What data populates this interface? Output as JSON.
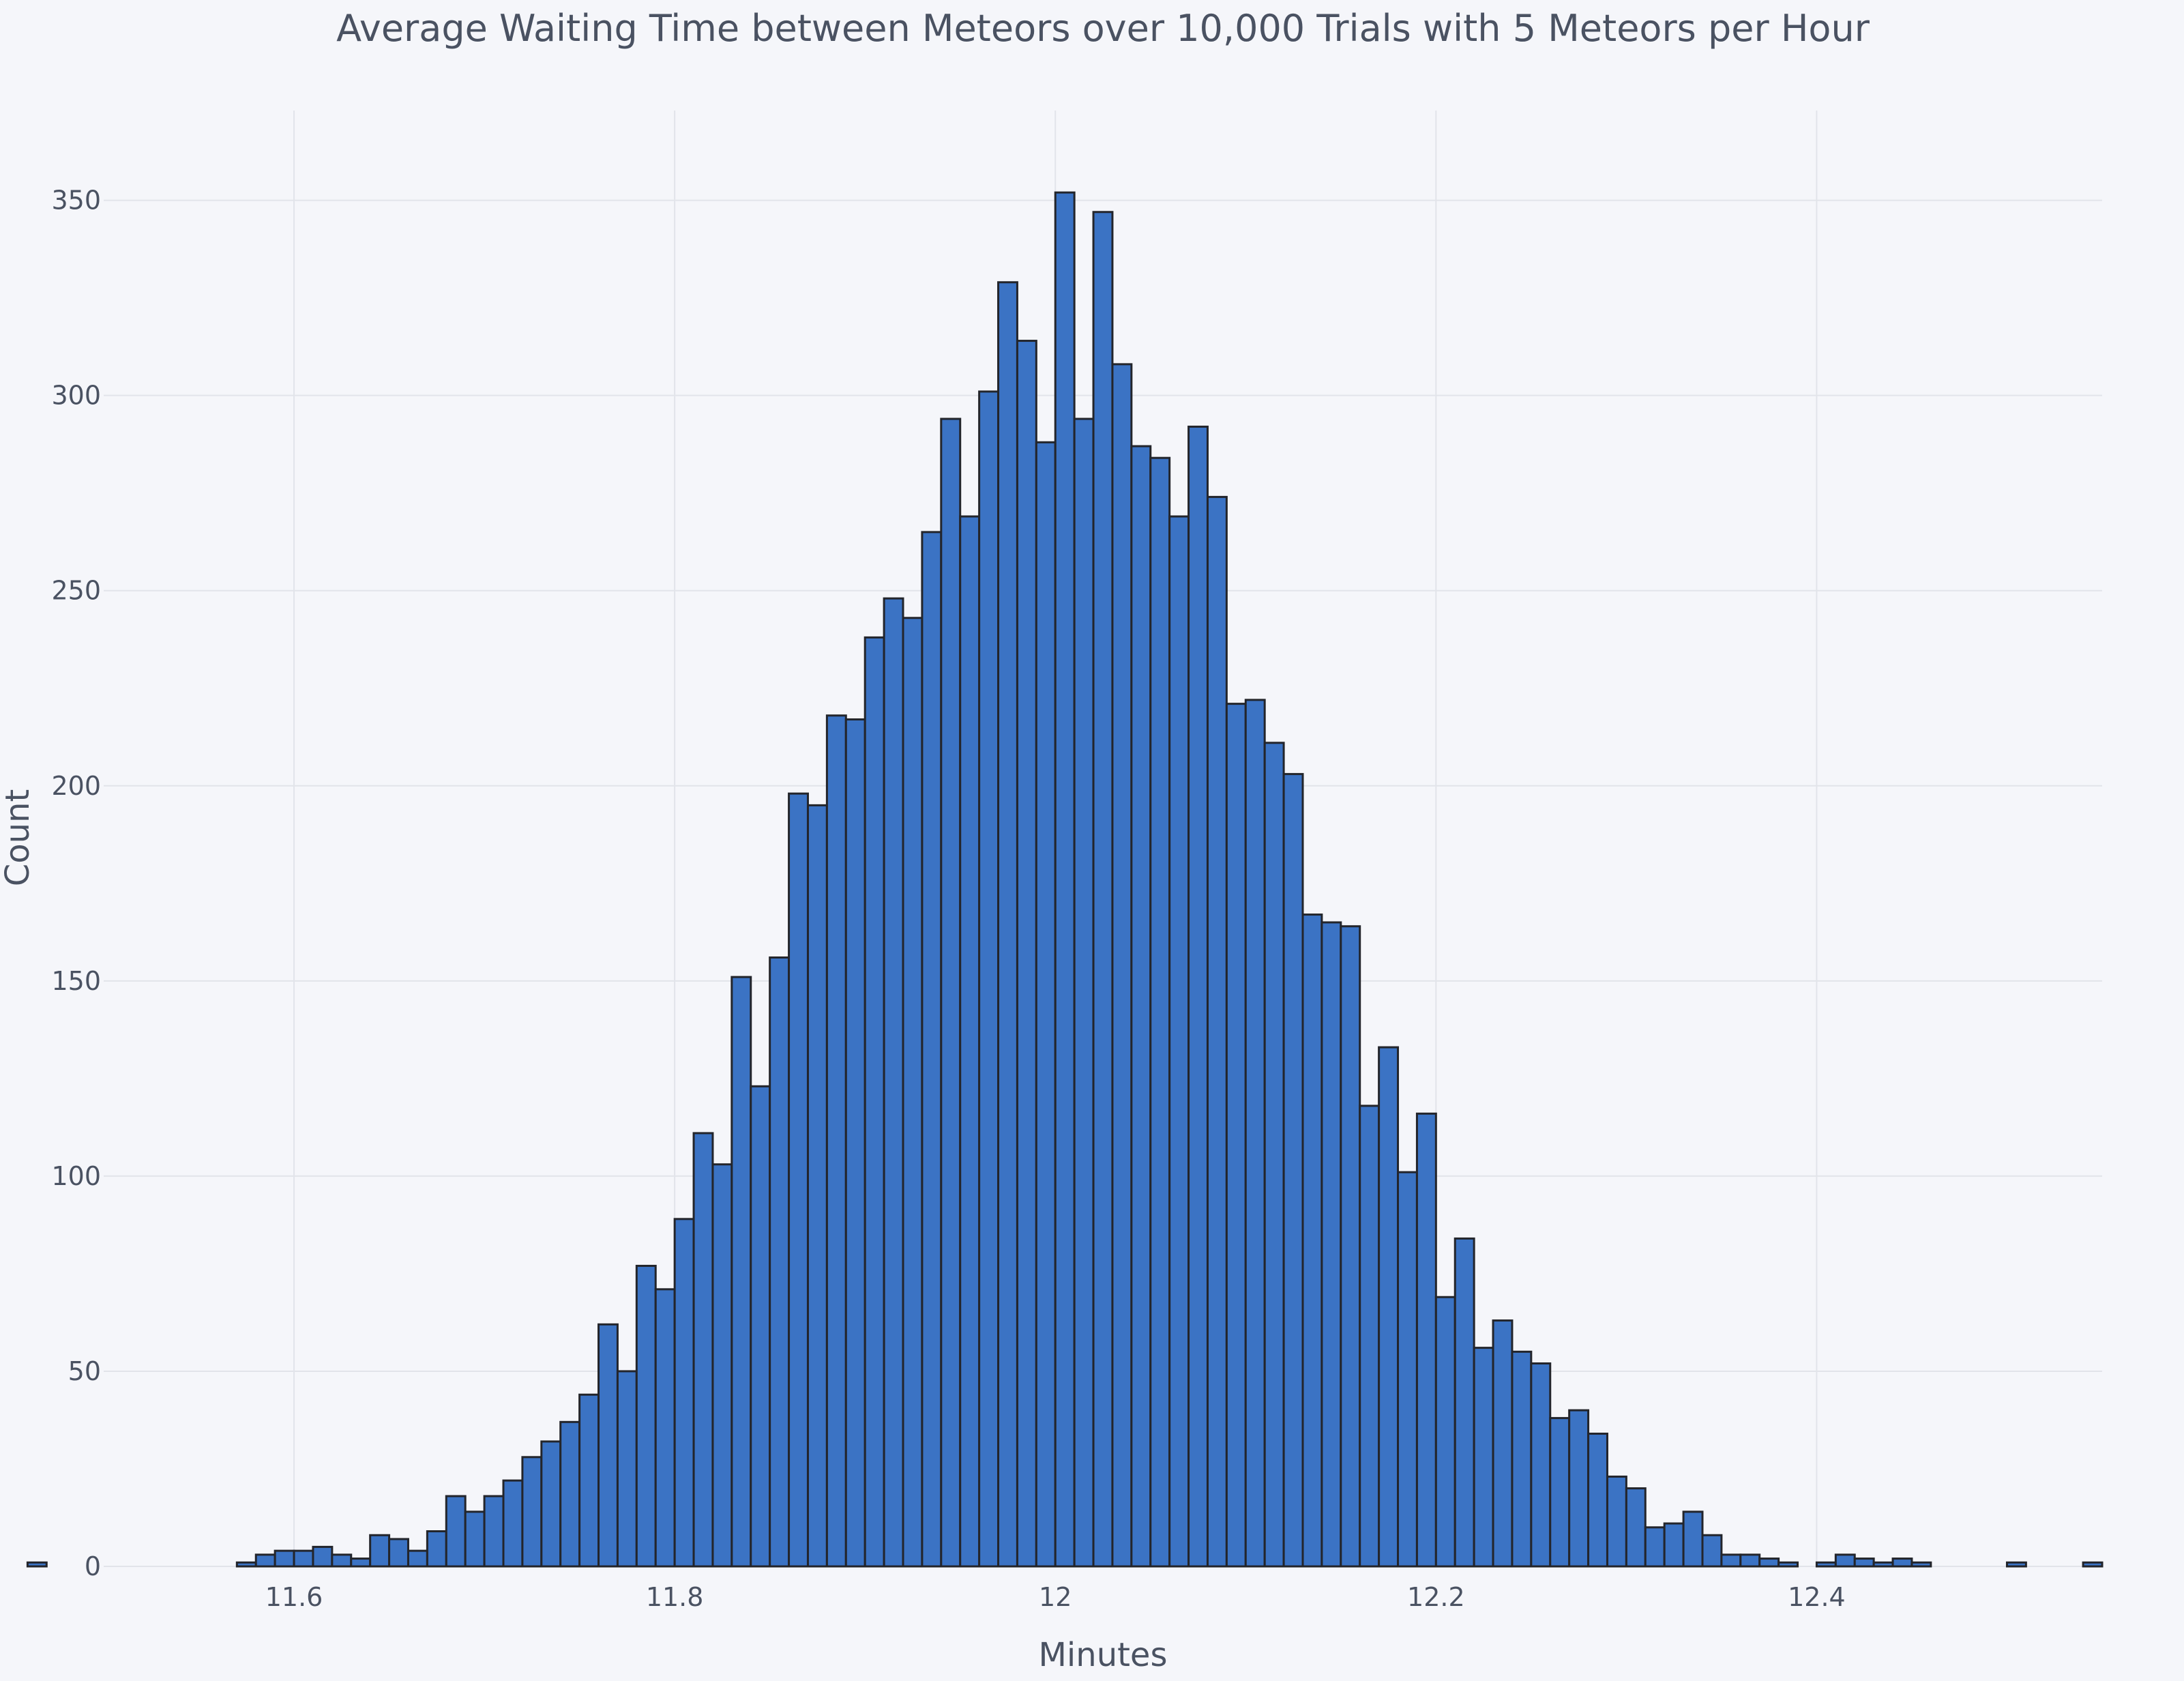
{
  "chart_data": {
    "type": "bar",
    "title": "Average Waiting Time between Meteors over 10,000 Trials with 5 Meteors per Hour",
    "xlabel": "Minutes",
    "ylabel": "Count",
    "xlim": [
      11.5,
      12.55
    ],
    "ylim": [
      0,
      373
    ],
    "bin_width": 0.01,
    "grid": true,
    "legend": "none",
    "x_ticks": [
      11.6,
      11.8,
      12,
      12.2,
      12.4
    ],
    "x_tick_labels": [
      "11.6",
      "11.8",
      "12",
      "12.2",
      "12.4"
    ],
    "y_ticks": [
      0,
      50,
      100,
      150,
      200,
      250,
      300,
      350
    ],
    "y_tick_labels": [
      "0",
      "50",
      "100",
      "150",
      "200",
      "250",
      "300",
      "350"
    ],
    "bin_starts": [
      11.46,
      11.57,
      11.58,
      11.59,
      11.6,
      11.61,
      11.62,
      11.63,
      11.64,
      11.65,
      11.66,
      11.67,
      11.68,
      11.69,
      11.7,
      11.71,
      11.72,
      11.73,
      11.74,
      11.75,
      11.76,
      11.77,
      11.78,
      11.79,
      11.8,
      11.81,
      11.82,
      11.83,
      11.84,
      11.85,
      11.86,
      11.87,
      11.88,
      11.89,
      11.9,
      11.91,
      11.92,
      11.93,
      11.94,
      11.95,
      11.96,
      11.97,
      11.98,
      11.99,
      12,
      12.01,
      12.02,
      12.03,
      12.04,
      12.05,
      12.06,
      12.07,
      12.08,
      12.09,
      12.1,
      12.11,
      12.12,
      12.13,
      12.14,
      12.15,
      12.16,
      12.17,
      12.18,
      12.19,
      12.2,
      12.21,
      12.22,
      12.23,
      12.24,
      12.25,
      12.26,
      12.27,
      12.28,
      12.29,
      12.3,
      12.31,
      12.32,
      12.33,
      12.34,
      12.35,
      12.36,
      12.37,
      12.38,
      12.4,
      12.41,
      12.42,
      12.43,
      12.44,
      12.45,
      12.5,
      12.54
    ],
    "values": [
      1,
      1,
      3,
      4,
      4,
      5,
      3,
      2,
      8,
      7,
      4,
      9,
      18,
      14,
      18,
      22,
      28,
      32,
      37,
      44,
      62,
      50,
      77,
      71,
      89,
      111,
      103,
      151,
      123,
      156,
      198,
      195,
      218,
      217,
      238,
      248,
      243,
      265,
      294,
      269,
      301,
      329,
      314,
      288,
      352,
      294,
      347,
      308,
      287,
      284,
      269,
      292,
      274,
      221,
      222,
      211,
      203,
      167,
      165,
      164,
      118,
      133,
      101,
      116,
      69,
      84,
      56,
      63,
      55,
      52,
      38,
      40,
      34,
      23,
      20,
      10,
      11,
      14,
      8,
      3,
      3,
      2,
      1,
      1,
      3,
      2,
      1,
      2,
      1,
      1,
      1
    ]
  }
}
